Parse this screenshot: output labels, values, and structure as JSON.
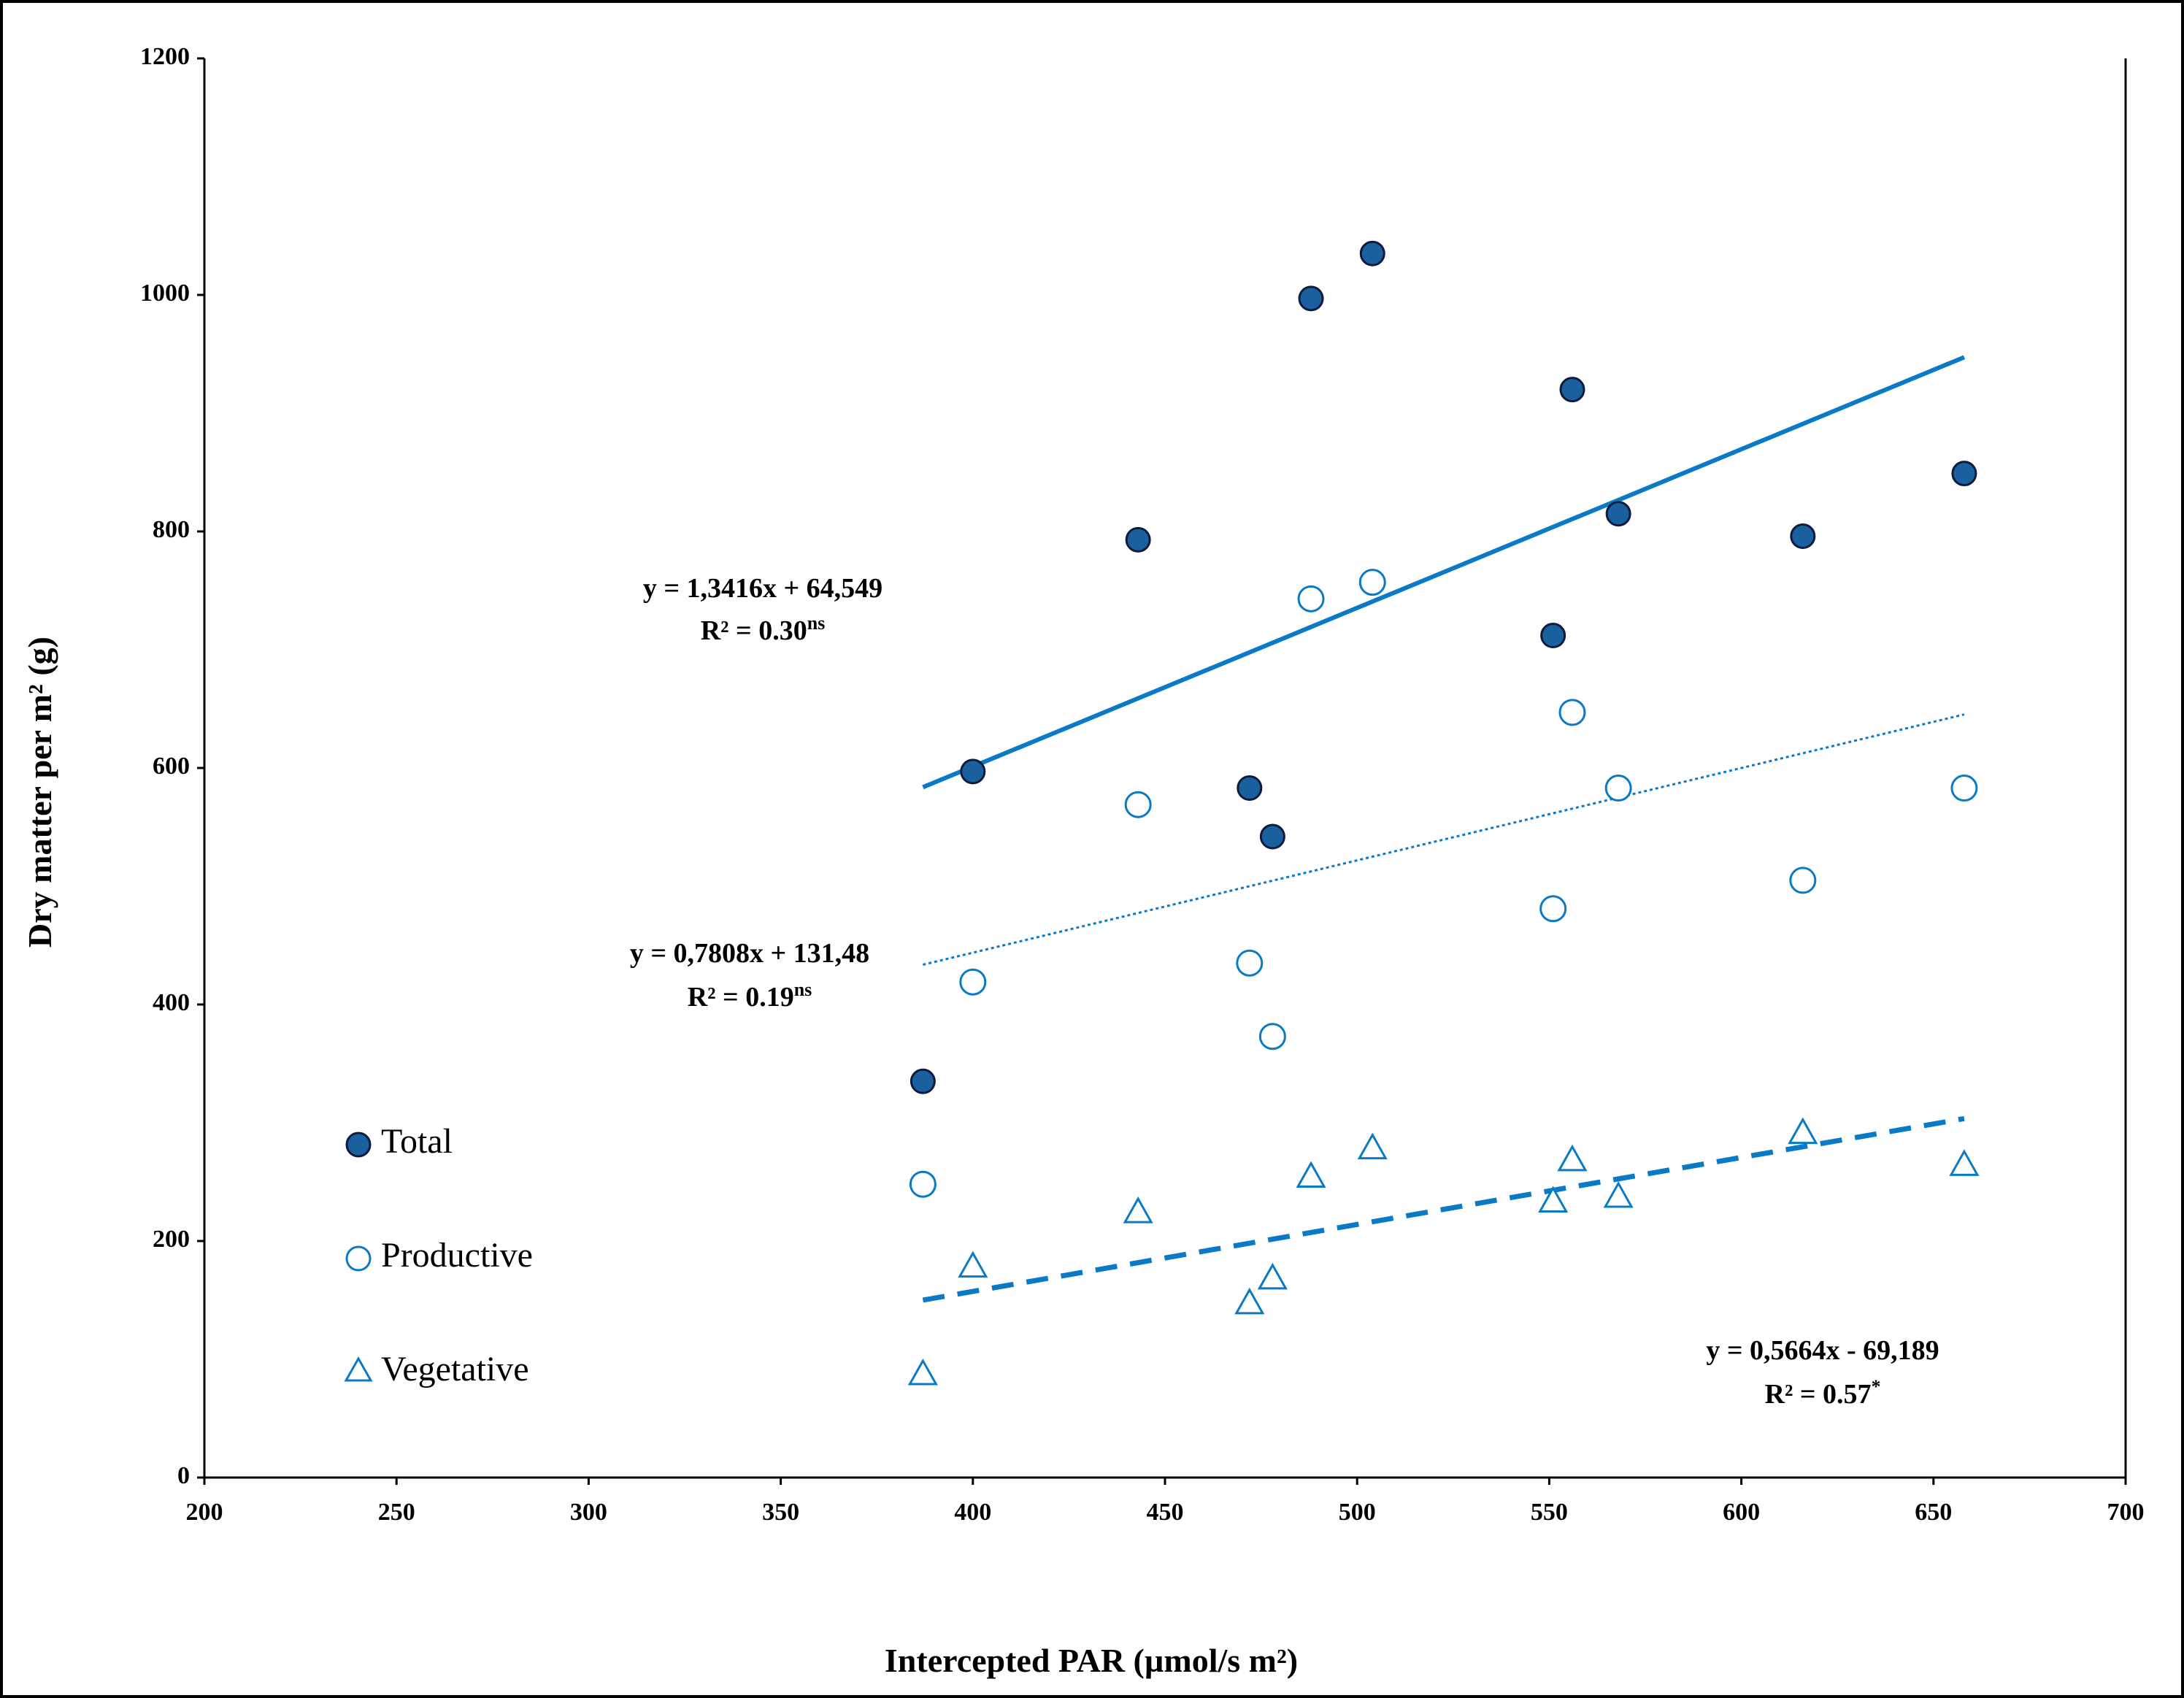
{
  "chart_data": {
    "type": "scatter",
    "xlabel": "Intercepted PAR (µmol/s m²)",
    "ylabel": "Dry matter per m² (g)",
    "xlim": [
      200,
      700
    ],
    "ylim": [
      0,
      1200
    ],
    "xticks": [
      200,
      250,
      300,
      350,
      400,
      450,
      500,
      550,
      600,
      650,
      700
    ],
    "yticks": [
      0,
      200,
      400,
      600,
      800,
      1000,
      1200
    ],
    "legend_position": "left",
    "grid": false,
    "colors": {
      "total_fill": "#1a5f9e",
      "series_line": "#0a7ac6",
      "marker": "#0a7ac6",
      "axis": "#000000"
    },
    "series": [
      {
        "name": "Total",
        "marker": "filled-circle",
        "x": [
          387,
          400,
          443,
          472,
          478,
          488,
          504,
          551,
          556,
          568,
          616,
          658
        ],
        "y": [
          335,
          597,
          793,
          583,
          542,
          997,
          1035,
          712,
          920,
          815,
          796,
          849
        ],
        "trend": {
          "style": "solid",
          "slope": 1.3416,
          "intercept": 64.549,
          "x_range": [
            387,
            658
          ]
        },
        "equation": "y = 1,3416x + 64,549",
        "r2_prefix": "R² = 0.30",
        "r2_sig": "ns"
      },
      {
        "name": "Productive",
        "marker": "open-circle",
        "x": [
          387,
          400,
          443,
          472,
          478,
          488,
          504,
          551,
          556,
          568,
          616,
          658
        ],
        "y": [
          248,
          419,
          569,
          435,
          373,
          743,
          757,
          481,
          647,
          583,
          505,
          583
        ],
        "trend": {
          "style": "dotted",
          "slope": 0.7808,
          "intercept": 131.48,
          "x_range": [
            387,
            658
          ]
        },
        "equation": "y = 0,7808x + 131,48",
        "r2_prefix": "R² = 0.19",
        "r2_sig": "ns"
      },
      {
        "name": "Vegetative",
        "marker": "open-triangle",
        "x": [
          387,
          400,
          443,
          472,
          478,
          488,
          504,
          551,
          556,
          568,
          616,
          658
        ],
        "y": [
          87,
          178,
          224,
          147,
          168,
          254,
          278,
          233,
          268,
          237,
          291,
          264
        ],
        "trend": {
          "style": "dashed",
          "slope": 0.5664,
          "intercept": -69.189,
          "x_range": [
            387,
            658
          ]
        },
        "equation": "y = 0,5664x - 69,189",
        "r2_prefix": "R² = 0.57",
        "r2_sig": "*"
      }
    ]
  }
}
